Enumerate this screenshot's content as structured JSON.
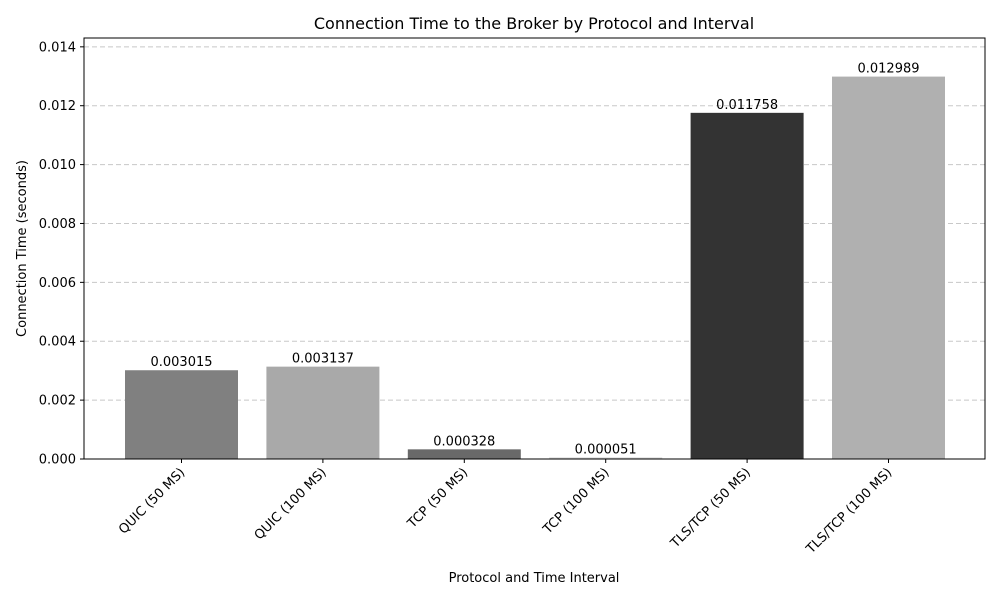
{
  "chart_data": {
    "type": "bar",
    "title": "Connection Time to the Broker by Protocol and Interval",
    "xlabel": "Protocol and Time Interval",
    "ylabel": "Connection Time (seconds)",
    "categories": [
      "QUIC (50 MS)",
      "QUIC (100 MS)",
      "TCP (50 MS)",
      "TCP (100 MS)",
      "TLS/TCP (50 MS)",
      "TLS/TCP (100 MS)"
    ],
    "values": [
      0.003015,
      0.003137,
      0.000328,
      5.1e-05,
      0.011758,
      0.012989
    ],
    "data_labels": [
      "0.003015",
      "0.003137",
      "0.000328",
      "0.000051",
      "0.011758",
      "0.012989"
    ],
    "colors": [
      "#808080",
      "#a9a9a9",
      "#696969",
      "#d3d3d3",
      "#333333",
      "#b0b0b0"
    ],
    "ylim": [
      0,
      0.0143
    ],
    "yticks": [
      0,
      0.002,
      0.004,
      0.006,
      0.008,
      0.01,
      0.012,
      0.014
    ],
    "ytick_labels": [
      "0.000",
      "0.002",
      "0.004",
      "0.006",
      "0.008",
      "0.010",
      "0.012",
      "0.014"
    ],
    "grid": "y-dashed"
  }
}
